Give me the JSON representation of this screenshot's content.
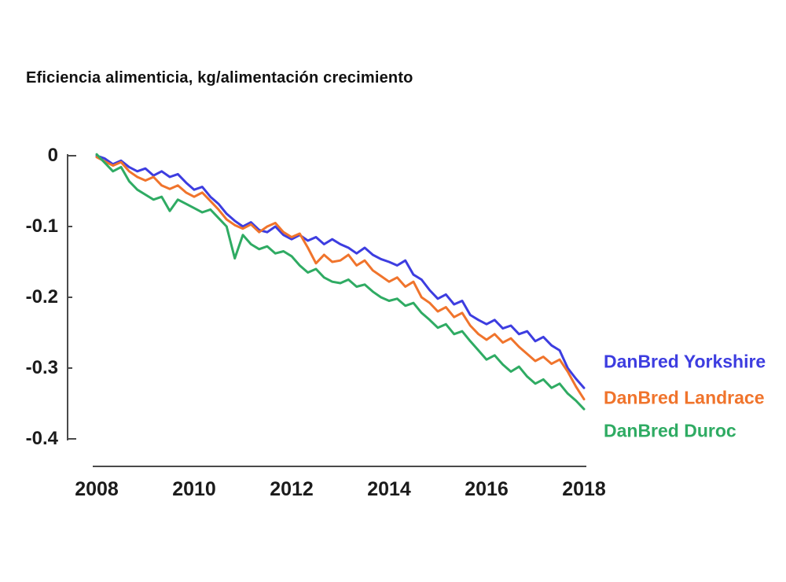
{
  "page": {
    "title": "Eficiencia alimenticia, kg/alimentación crecimiento"
  },
  "chart_data": {
    "type": "line",
    "title": "Eficiencia alimenticia, kg/alimentación crecimiento",
    "xlabel": "",
    "ylabel": "",
    "xlim": [
      2008,
      2018
    ],
    "ylim": [
      -0.4,
      0
    ],
    "grid": false,
    "legend_position": "right-of-line-ends",
    "x_tick_labels": [
      "2008",
      "2010",
      "2012",
      "2014",
      "2016",
      "2018"
    ],
    "x_tick_years": [
      2008,
      2010,
      2012,
      2014,
      2016,
      2018
    ],
    "y_tick_labels": [
      "0",
      "-0.1",
      "-0.2",
      "-0.3",
      "-0.4"
    ],
    "y_tick_values": [
      0,
      -0.1,
      -0.2,
      -0.3,
      -0.4
    ],
    "x_start_year": 2008,
    "x_end_year": 2018,
    "points_per_series": 61,
    "axis_color": "#4a4a4a",
    "series": [
      {
        "name": "DanBred Yorkshire",
        "color": "#3d3de0",
        "values": [
          0.0,
          -0.004,
          -0.012,
          -0.007,
          -0.016,
          -0.022,
          -0.018,
          -0.028,
          -0.022,
          -0.03,
          -0.026,
          -0.038,
          -0.048,
          -0.044,
          -0.058,
          -0.068,
          -0.082,
          -0.092,
          -0.1,
          -0.094,
          -0.105,
          -0.108,
          -0.1,
          -0.112,
          -0.118,
          -0.112,
          -0.12,
          -0.115,
          -0.125,
          -0.118,
          -0.125,
          -0.13,
          -0.138,
          -0.13,
          -0.14,
          -0.146,
          -0.15,
          -0.155,
          -0.148,
          -0.168,
          -0.175,
          -0.19,
          -0.202,
          -0.196,
          -0.21,
          -0.205,
          -0.225,
          -0.232,
          -0.238,
          -0.232,
          -0.244,
          -0.24,
          -0.252,
          -0.248,
          -0.262,
          -0.256,
          -0.268,
          -0.275,
          -0.3,
          -0.315,
          -0.328
        ]
      },
      {
        "name": "DanBred Landrace",
        "color": "#f0742c",
        "values": [
          -0.002,
          -0.008,
          -0.014,
          -0.009,
          -0.022,
          -0.03,
          -0.035,
          -0.03,
          -0.042,
          -0.047,
          -0.042,
          -0.052,
          -0.058,
          -0.052,
          -0.064,
          -0.076,
          -0.09,
          -0.098,
          -0.103,
          -0.097,
          -0.108,
          -0.1,
          -0.095,
          -0.108,
          -0.115,
          -0.11,
          -0.13,
          -0.152,
          -0.14,
          -0.15,
          -0.148,
          -0.14,
          -0.155,
          -0.148,
          -0.162,
          -0.17,
          -0.178,
          -0.172,
          -0.185,
          -0.178,
          -0.2,
          -0.208,
          -0.22,
          -0.214,
          -0.228,
          -0.222,
          -0.24,
          -0.252,
          -0.26,
          -0.252,
          -0.264,
          -0.258,
          -0.27,
          -0.28,
          -0.29,
          -0.284,
          -0.294,
          -0.288,
          -0.305,
          -0.326,
          -0.344
        ]
      },
      {
        "name": "DanBred Duroc",
        "color": "#2fab63",
        "values": [
          0.002,
          -0.01,
          -0.022,
          -0.016,
          -0.036,
          -0.048,
          -0.055,
          -0.062,
          -0.058,
          -0.078,
          -0.062,
          -0.068,
          -0.074,
          -0.08,
          -0.076,
          -0.088,
          -0.1,
          -0.145,
          -0.112,
          -0.125,
          -0.132,
          -0.128,
          -0.138,
          -0.135,
          -0.142,
          -0.155,
          -0.165,
          -0.16,
          -0.172,
          -0.178,
          -0.18,
          -0.175,
          -0.185,
          -0.182,
          -0.192,
          -0.2,
          -0.205,
          -0.202,
          -0.212,
          -0.208,
          -0.222,
          -0.232,
          -0.243,
          -0.238,
          -0.252,
          -0.248,
          -0.262,
          -0.275,
          -0.288,
          -0.282,
          -0.295,
          -0.305,
          -0.298,
          -0.312,
          -0.322,
          -0.316,
          -0.328,
          -0.322,
          -0.336,
          -0.346,
          -0.358
        ]
      }
    ]
  }
}
